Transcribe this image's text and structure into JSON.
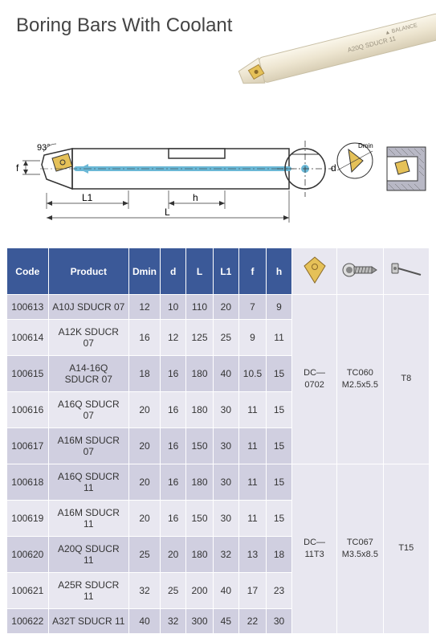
{
  "title": "Boring Bars With Coolant",
  "hero_label": "A20Q SDUCR 11",
  "hero_brand": "BALANCE",
  "diagram": {
    "angle": "93°",
    "f": "f",
    "L1": "L1",
    "h": "h",
    "L": "L",
    "d": "d",
    "Dmin": "Dmin"
  },
  "columns": [
    "Code",
    "Product",
    "Dmin",
    "d",
    "L",
    "L1",
    "f",
    "h"
  ],
  "rows": [
    [
      "100613",
      "A10J SDUCR 07",
      "12",
      "10",
      "110",
      "20",
      "7",
      "9"
    ],
    [
      "100614",
      "A12K SDUCR 07",
      "16",
      "12",
      "125",
      "25",
      "9",
      "11"
    ],
    [
      "100615",
      "A14-16Q SDUCR 07",
      "18",
      "16",
      "180",
      "40",
      "10.5",
      "15"
    ],
    [
      "100616",
      "A16Q SDUCR 07",
      "20",
      "16",
      "180",
      "30",
      "11",
      "15"
    ],
    [
      "100617",
      "A16M SDUCR 07",
      "20",
      "16",
      "150",
      "30",
      "11",
      "15"
    ],
    [
      "100618",
      "A16Q SDUCR 11",
      "20",
      "16",
      "180",
      "30",
      "11",
      "15"
    ],
    [
      "100619",
      "A16M SDUCR 11",
      "20",
      "16",
      "150",
      "30",
      "11",
      "15"
    ],
    [
      "100620",
      "A20Q SDUCR 11",
      "25",
      "20",
      "180",
      "32",
      "13",
      "18"
    ],
    [
      "100621",
      "A25R SDUCR 11",
      "32",
      "25",
      "200",
      "40",
      "17",
      "23"
    ],
    [
      "100622",
      "A32T SDUCR 11",
      "40",
      "32",
      "300",
      "45",
      "22",
      "30"
    ]
  ],
  "groups": [
    {
      "span": 5,
      "insert": "DC—0702",
      "screw": "TC060\nM2.5x5.5",
      "wrench": "T8"
    },
    {
      "span": 5,
      "insert": "DC—11T3",
      "screw": "TC067\nM3.5x8.5",
      "wrench": "T15"
    }
  ],
  "colors": {
    "header_bg": "#3b5998",
    "row_dark": "#d0cfe0",
    "row_light": "#e8e7f0",
    "insert_fill": "#e5c158",
    "bar_fill": "#f5f0e1",
    "coolant": "#6bb8d6"
  }
}
